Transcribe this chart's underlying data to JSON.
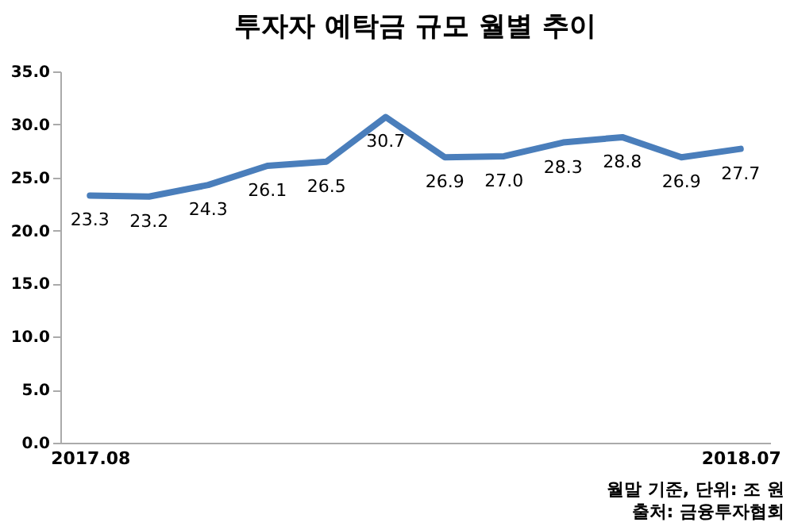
{
  "chart_data": {
    "type": "line",
    "title": "투자자 예탁금 규모 월별 추이",
    "categories": [
      "2017.08",
      null,
      null,
      null,
      null,
      null,
      null,
      null,
      null,
      null,
      null,
      "2018.07"
    ],
    "series": [
      {
        "color": "#4a7ebb",
        "values": [
          23.3,
          23.2,
          24.3,
          26.1,
          26.5,
          30.7,
          26.9,
          27.0,
          28.3,
          28.8,
          26.9,
          27.7
        ]
      }
    ],
    "ylim": [
      0,
      35
    ],
    "yticks": [
      {
        "value": 0,
        "label": "0.0"
      },
      {
        "value": 5,
        "label": "5.0"
      },
      {
        "value": 10,
        "label": "10.0"
      },
      {
        "value": 15,
        "label": "15.0"
      },
      {
        "value": 20,
        "label": "20.0"
      },
      {
        "value": 25,
        "label": "25.0"
      },
      {
        "value": 30,
        "label": "30.0"
      },
      {
        "value": 35,
        "label": "35.0"
      }
    ],
    "value_labels": [
      "23.3",
      "23.2",
      "24.3",
      "26.1",
      "26.5",
      "30.7",
      "26.9",
      "27.0",
      "28.3",
      "28.8",
      "26.9",
      "27.7"
    ],
    "grid": false,
    "annotations": [
      "월말 기준, 단위: 조 원",
      "출처: 금융투자협회"
    ]
  }
}
